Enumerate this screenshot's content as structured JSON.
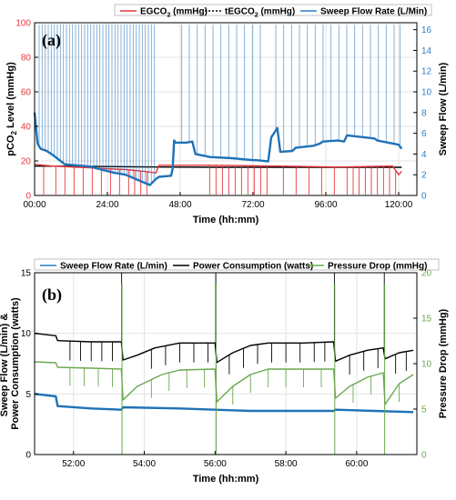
{
  "chart_data": [
    {
      "type": "line",
      "panel_label": "(a)",
      "xlabel": "Time (hh:mm)",
      "ylabel_left": [
        "pCO",
        "2",
        " Level (mmHg)"
      ],
      "ylabel_right": "Sweep Flow (L/min)",
      "xlim": [
        0,
        126
      ],
      "ylim_left": [
        0,
        100
      ],
      "ylim_right": [
        0,
        16.67
      ],
      "xticks": [
        0,
        24,
        48,
        72,
        96,
        120
      ],
      "xtick_labels": [
        "00:00",
        "24:00",
        "48:00",
        "72:00",
        "96:00",
        "120:00"
      ],
      "yticks_left": [
        0,
        20,
        40,
        60,
        80,
        100
      ],
      "yticks_right": [
        0,
        2,
        4,
        6,
        8,
        10,
        12,
        14,
        16
      ],
      "grid": true,
      "legend": {
        "placement": "top",
        "entries": [
          {
            "parts": [
              "EGCO",
              "2",
              " (mmHg)"
            ],
            "color": "#e8353b",
            "style": "solid"
          },
          {
            "parts": [
              "tEGCO",
              "2",
              " (mmHg)"
            ],
            "color": "#000000",
            "style": "dashed"
          },
          {
            "parts": [
              "Sweep Flow Rate (L/Min)",
              "",
              ""
            ],
            "color": "#2a7fc5",
            "style": "solid"
          }
        ]
      },
      "series": [
        {
          "name": "tEGCO2 (mmHg)",
          "axis": "left",
          "color": "#000000",
          "x": [
            0,
            20,
            40,
            60,
            80,
            100,
            121
          ],
          "values": [
            17,
            16.8,
            16.5,
            16.3,
            16.3,
            16.3,
            16.3
          ]
        },
        {
          "name": "EGCO2 (mmHg)",
          "axis": "left",
          "color": "#e8353b",
          "x": [
            0,
            6,
            12,
            18,
            24,
            30,
            36,
            40,
            41,
            60,
            80,
            100,
            118,
            120,
            121
          ],
          "values": [
            18,
            17,
            16.5,
            16,
            15.5,
            15,
            14,
            13,
            17.5,
            17.5,
            17,
            16.5,
            17,
            12,
            14
          ],
          "downward_spikes_x": [
            3,
            7,
            10,
            13,
            16,
            19,
            22,
            25,
            28,
            31,
            33,
            35,
            37,
            57.7,
            59.8,
            61.9,
            64,
            66.1,
            68.2,
            70.3,
            72.4,
            74.5,
            76.6,
            82,
            86.2,
            90.4,
            94.6,
            98.8,
            103,
            105,
            107,
            109,
            111,
            113,
            115,
            117,
            119
          ]
        },
        {
          "name": "Sweep Flow Rate (L/Min)",
          "axis": "right",
          "color": "#1f72b8",
          "x": [
            0,
            1,
            2,
            4,
            6,
            10,
            14,
            18,
            22,
            26,
            30,
            34,
            38,
            40,
            41,
            45,
            45.5,
            46,
            46.5,
            50,
            52,
            53,
            58,
            65,
            72,
            73,
            77,
            78,
            80,
            81,
            85,
            86,
            92,
            94,
            95,
            100,
            102,
            103,
            112,
            113,
            120,
            121
          ],
          "values": [
            8,
            5,
            4.5,
            4.3,
            3.9,
            3,
            2.9,
            2.8,
            2.5,
            2.2,
            2,
            1.5,
            1,
            1.6,
            1.8,
            1.9,
            2.6,
            5.3,
            5.1,
            5.1,
            5.2,
            4,
            3.7,
            3.6,
            3.4,
            3.4,
            3.3,
            5.6,
            6.5,
            4.2,
            4.3,
            4.6,
            4.8,
            5,
            5.2,
            5.3,
            5.2,
            5.8,
            5.5,
            5.3,
            4.9,
            4.5
          ],
          "upward_spikes_x": [
            1.5,
            2.5,
            3.5,
            4.5,
            5.5,
            6.5,
            7.5,
            8.5,
            9.5,
            10.5,
            11.5,
            12.5,
            13.5,
            14.5,
            15.5,
            16.5,
            17.5,
            18.5,
            19.5,
            20.5,
            21.5,
            22.5,
            23.5,
            24.5,
            25.5,
            26.5,
            27.5,
            28.5,
            29.5,
            30.5,
            31.5,
            32.5,
            33.5,
            34.5,
            35.5,
            36.5,
            37.5,
            38.5,
            39.5,
            48.5,
            51,
            53.6,
            56.2,
            58.8,
            61.4,
            64,
            66.6,
            69.2,
            71.8,
            74.4,
            79.5,
            82.1,
            84.7,
            87.3,
            89.9,
            92.5,
            95.1,
            97.7,
            100.3,
            102.9,
            105.5,
            108.1,
            110.7,
            113.3,
            115.9,
            118.5,
            120.5
          ]
        }
      ]
    },
    {
      "type": "line",
      "panel_label": "(b)",
      "xlabel": "Time (hh:mm)",
      "ylabel_left": [
        "Sweep Flow (L/min) &",
        "Power Consumption (watts)"
      ],
      "ylabel_right": "Pressure Drop (mmHg)",
      "xlim": [
        50.9,
        61.7
      ],
      "ylim_left": [
        0,
        15
      ],
      "ylim_right": [
        0,
        20
      ],
      "xticks": [
        52,
        54,
        56,
        58,
        60
      ],
      "xtick_labels": [
        "52:00",
        "54:00",
        "56:00",
        "58:00",
        "60:00"
      ],
      "yticks_left": [
        0,
        5,
        10,
        15
      ],
      "yticks_right": [
        0,
        5,
        10,
        15,
        20
      ],
      "grid": true,
      "legend": {
        "placement": "top",
        "entries": [
          {
            "parts": [
              "Sweep Flow Rate (L/min)",
              "",
              ""
            ],
            "color": "#2a7fc5",
            "style": "solid"
          },
          {
            "parts": [
              "Power Consumption (watts)",
              "",
              ""
            ],
            "color": "#000000",
            "style": "solid"
          },
          {
            "parts": [
              "Pressure Drop (mmHg)",
              "",
              ""
            ],
            "color": "#6aa84f",
            "style": "solid"
          }
        ]
      },
      "series": [
        {
          "name": "Sweep Flow Rate (L/min)",
          "axis": "left",
          "color": "#1f72b8",
          "x": [
            50.9,
            51.5,
            51.55,
            52.5,
            53.35,
            53.4,
            55,
            56,
            57,
            58,
            59.35,
            59.4,
            60.5,
            61.6
          ],
          "values": [
            5,
            4.8,
            4,
            3.8,
            3.7,
            3.9,
            3.8,
            3.7,
            3.6,
            3.6,
            3.6,
            3.7,
            3.6,
            3.5
          ]
        },
        {
          "name": "Power Consumption (watts)",
          "axis": "left",
          "color": "#000000",
          "x": [
            50.9,
            51.5,
            51.55,
            52.5,
            53.35,
            53.4,
            53.8,
            54.3,
            55,
            56,
            56.05,
            56.5,
            57,
            57.5,
            58.5,
            59.35,
            59.4,
            59.8,
            60.3,
            60.75,
            60.8,
            61.2,
            61.6
          ],
          "values": [
            10,
            9.8,
            9.4,
            9.3,
            9.3,
            7.8,
            8.2,
            8.8,
            9.2,
            9.2,
            7.6,
            8.4,
            9,
            9.2,
            9.2,
            9.3,
            7.7,
            8.2,
            8.6,
            8.8,
            7.9,
            8.4,
            8.6
          ],
          "downward_spikes_x": [
            51.9,
            52.2,
            52.5,
            52.8,
            53.1,
            54.2,
            54.6,
            55,
            55.4,
            55.8,
            56.4,
            56.8,
            57.2,
            57.6,
            58,
            58.4,
            58.8,
            59.1,
            59.8,
            60.2,
            60.6,
            61.1,
            61.4
          ],
          "upward_spikes_x": [
            53.36,
            56.02,
            59.37,
            60.78
          ]
        },
        {
          "name": "Pressure Drop (mmHg)",
          "axis": "right",
          "color": "#6aa84f",
          "x": [
            50.9,
            51.5,
            51.55,
            52.5,
            53.35,
            53.4,
            53.8,
            54.5,
            55,
            56,
            56.05,
            56.5,
            57,
            57.5,
            58.5,
            59.35,
            59.4,
            59.8,
            60.3,
            60.75,
            60.8,
            61.2,
            61.6
          ],
          "values": [
            10.2,
            10.1,
            9.6,
            9.5,
            9.4,
            6,
            7.5,
            8.8,
            9.3,
            9.4,
            5.8,
            7.5,
            8.8,
            9.4,
            9.4,
            9.4,
            6.2,
            7.5,
            8.5,
            9,
            5.5,
            7.8,
            8.8
          ],
          "downward_spikes_x": [
            51.9,
            52.3,
            52.7,
            53.1,
            54.2,
            54.7,
            55.2,
            55.7,
            56.5,
            57,
            57.5,
            58,
            58.5,
            59,
            59.9,
            60.4,
            61.2
          ],
          "deep_spikes_x": [
            53.37,
            56.03,
            59.38,
            60.79
          ]
        }
      ]
    }
  ]
}
